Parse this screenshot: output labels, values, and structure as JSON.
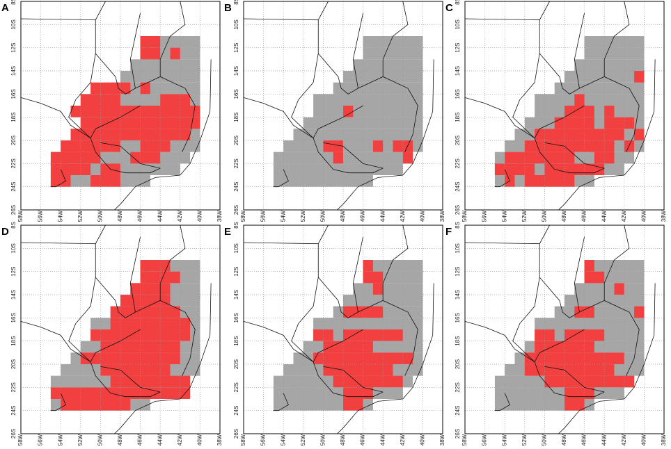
{
  "panels": [
    {
      "label": "A"
    },
    {
      "label": "B"
    },
    {
      "label": "C"
    },
    {
      "label": "D"
    },
    {
      "label": "E"
    },
    {
      "label": "F"
    }
  ],
  "yticks": [
    "8S",
    "10S",
    "12S",
    "14S",
    "16S",
    "18S",
    "20S",
    "22S",
    "24S",
    "26S"
  ],
  "xticks": [
    "58W",
    "56W",
    "54W",
    "52W",
    "50W",
    "48W",
    "46W",
    "44W",
    "42W",
    "40W",
    "38W"
  ]
}
